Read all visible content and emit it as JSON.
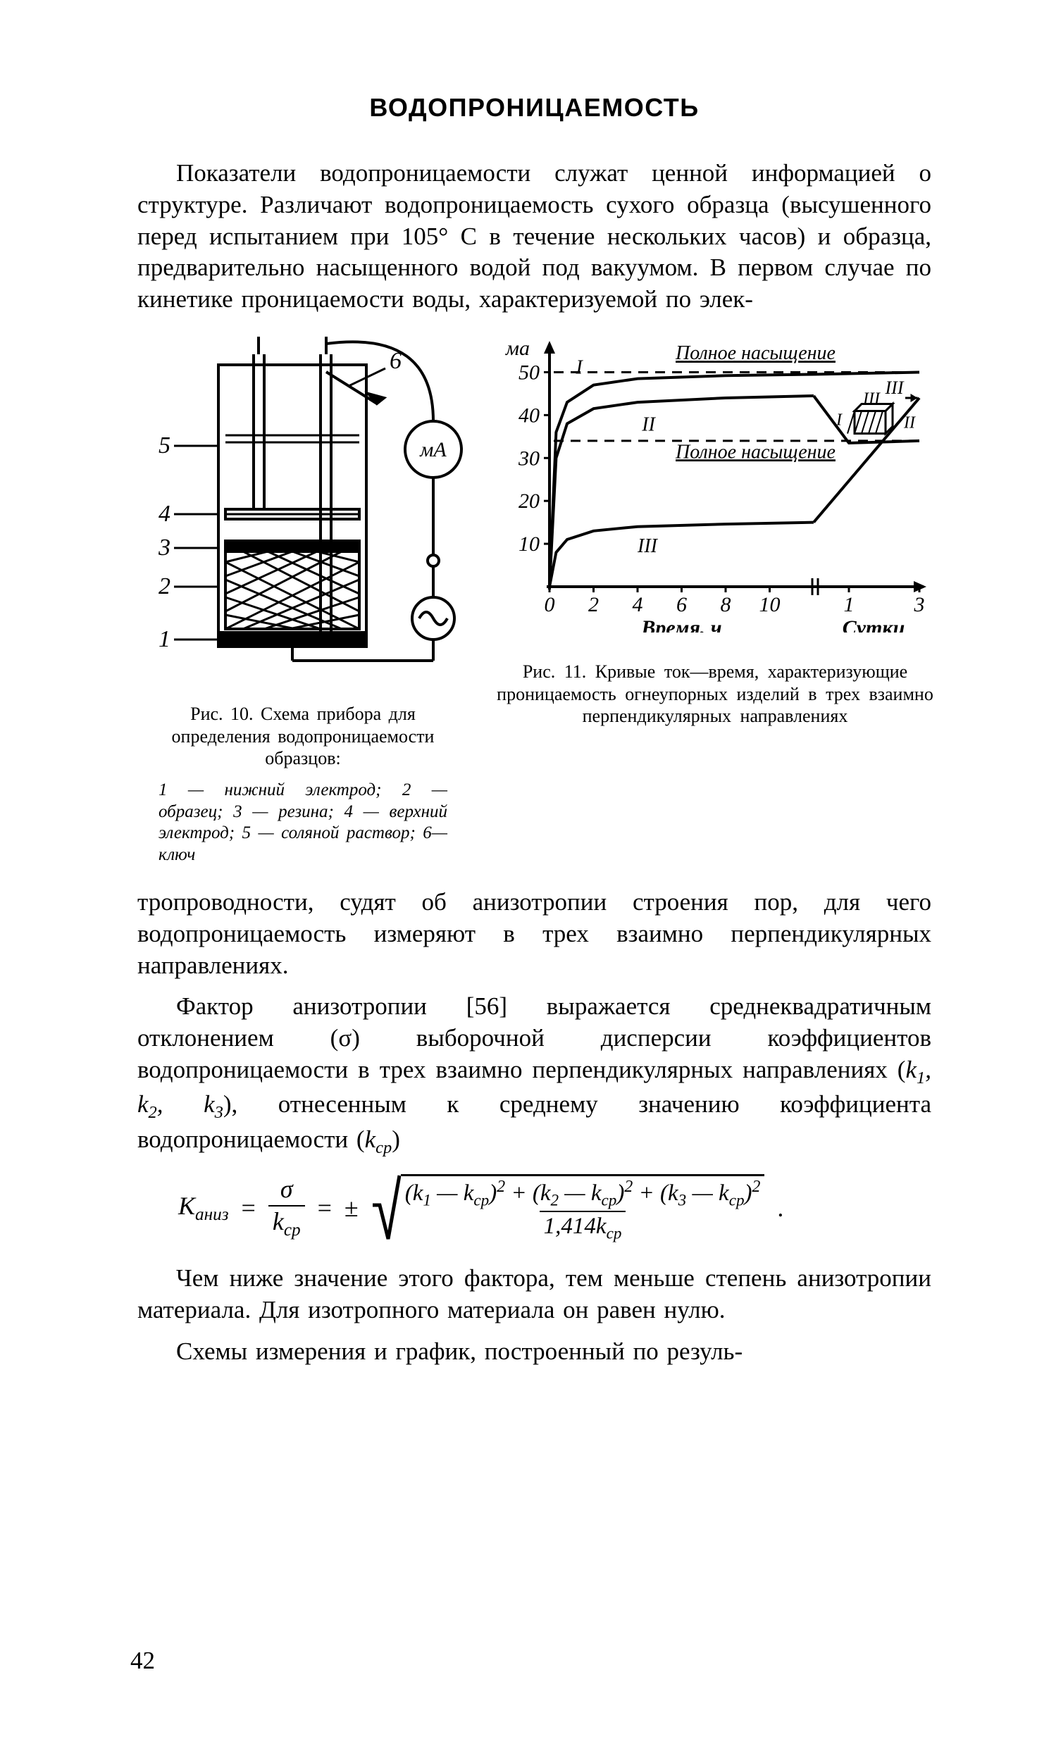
{
  "heading": "ВОДОПРОНИЦАЕМОСТЬ",
  "p1": "Показатели водопроницаемости служат ценной информацией о структуре. Различают водопроницаемость сухого образца (высушенного перед испытанием при 105° С в течение нескольких часов) и образца, предварительно насыщенного водой под вакуумом. В первом случае по кинетике проницаемости воды, характеризуемой по элек-",
  "p2": "тропроводности, судят об анизотропии строения пор, для чего водопроницаемость измеряют в трех взаимно перпендикулярных направлениях.",
  "p3_a": "Фактор анизотропии [56] выражается  среднеквадратичным отклонением (σ) выборочной дисперсии коэффициентов водопроницаемости в трех взаимно перпендикулярных направлениях (",
  "p3_b": "), отнесенным к среднему значению коэффициента водопроницаемости (",
  "p3_c": ")",
  "p4": "Чем ниже значение этого фактора, тем меньше степень анизотропии материала. Для изотропного материала он равен нулю.",
  "p5": "Схемы измерения и график, построенный по резуль-",
  "fig10": {
    "title": "Рис. 10. Схема прибора для определения водопроницаемости образцов:",
    "legend": "1 — нижний электрод; 2 — образец;   3 — резина;       4 — верхний электрод;   5 — соляной раствор;  6— ключ",
    "labels": {
      "1": "1",
      "2": "2",
      "3": "3",
      "4": "4",
      "5": "5",
      "6": "6",
      "ma": "мА"
    },
    "colors": {
      "stroke": "#000000",
      "bg": "#ffffff",
      "hatch": "#000000"
    }
  },
  "fig11": {
    "title": "Рис. 11. Кривые ток—время, характеризующие проницаемость огнеупорных изделий в трех взаимно перпендикулярных направлениях",
    "y_label": "ма",
    "y_ticks": [
      10,
      20,
      30,
      40,
      50
    ],
    "x_ticks_h": [
      "0",
      "2",
      "4",
      "6",
      "8",
      "10"
    ],
    "x_ticks_d": [
      "1",
      "3"
    ],
    "x_label_h": "Время, ч",
    "x_label_d": "Сутки",
    "sat_full": "Полное насыщение",
    "curve_labels": {
      "I": "I",
      "II": "II",
      "III": "III"
    },
    "xlim_h": [
      0,
      12
    ],
    "ylim": [
      0,
      55
    ],
    "series": {
      "I": [
        [
          0,
          0
        ],
        [
          0.3,
          36
        ],
        [
          0.8,
          43
        ],
        [
          2,
          47
        ],
        [
          4,
          48.5
        ],
        [
          8,
          49.2
        ],
        [
          12,
          49.5
        ]
      ],
      "II": [
        [
          0,
          0
        ],
        [
          0.3,
          30
        ],
        [
          0.8,
          38
        ],
        [
          2,
          41.5
        ],
        [
          4,
          43
        ],
        [
          8,
          44
        ],
        [
          12,
          44.5
        ]
      ],
      "III": [
        [
          0,
          0
        ],
        [
          0.3,
          8
        ],
        [
          0.8,
          11
        ],
        [
          2,
          13
        ],
        [
          4,
          14
        ],
        [
          8,
          14.6
        ],
        [
          12,
          15
        ]
      ]
    },
    "days_series": {
      "I": [
        [
          0,
          49.5
        ],
        [
          3,
          50
        ]
      ],
      "II": [
        [
          0,
          44.5
        ],
        [
          1,
          33.5
        ],
        [
          3,
          34
        ]
      ],
      "III": [
        [
          0,
          15
        ],
        [
          3,
          44
        ]
      ]
    },
    "full_sat_lines": [
      50,
      34
    ],
    "colors": {
      "stroke": "#000000",
      "bg": "#ffffff"
    }
  },
  "formula": {
    "K": "K",
    "sub_aniz": "аниз",
    "sigma": "σ",
    "kcp": "k",
    "sub_cp": "ср",
    "pm": "±",
    "k1": "k",
    "k2": "k",
    "k3": "k",
    "s1": "1",
    "s2": "2",
    "s3": "3",
    "coef": "1,414",
    "dot": "."
  },
  "page_number": "42"
}
